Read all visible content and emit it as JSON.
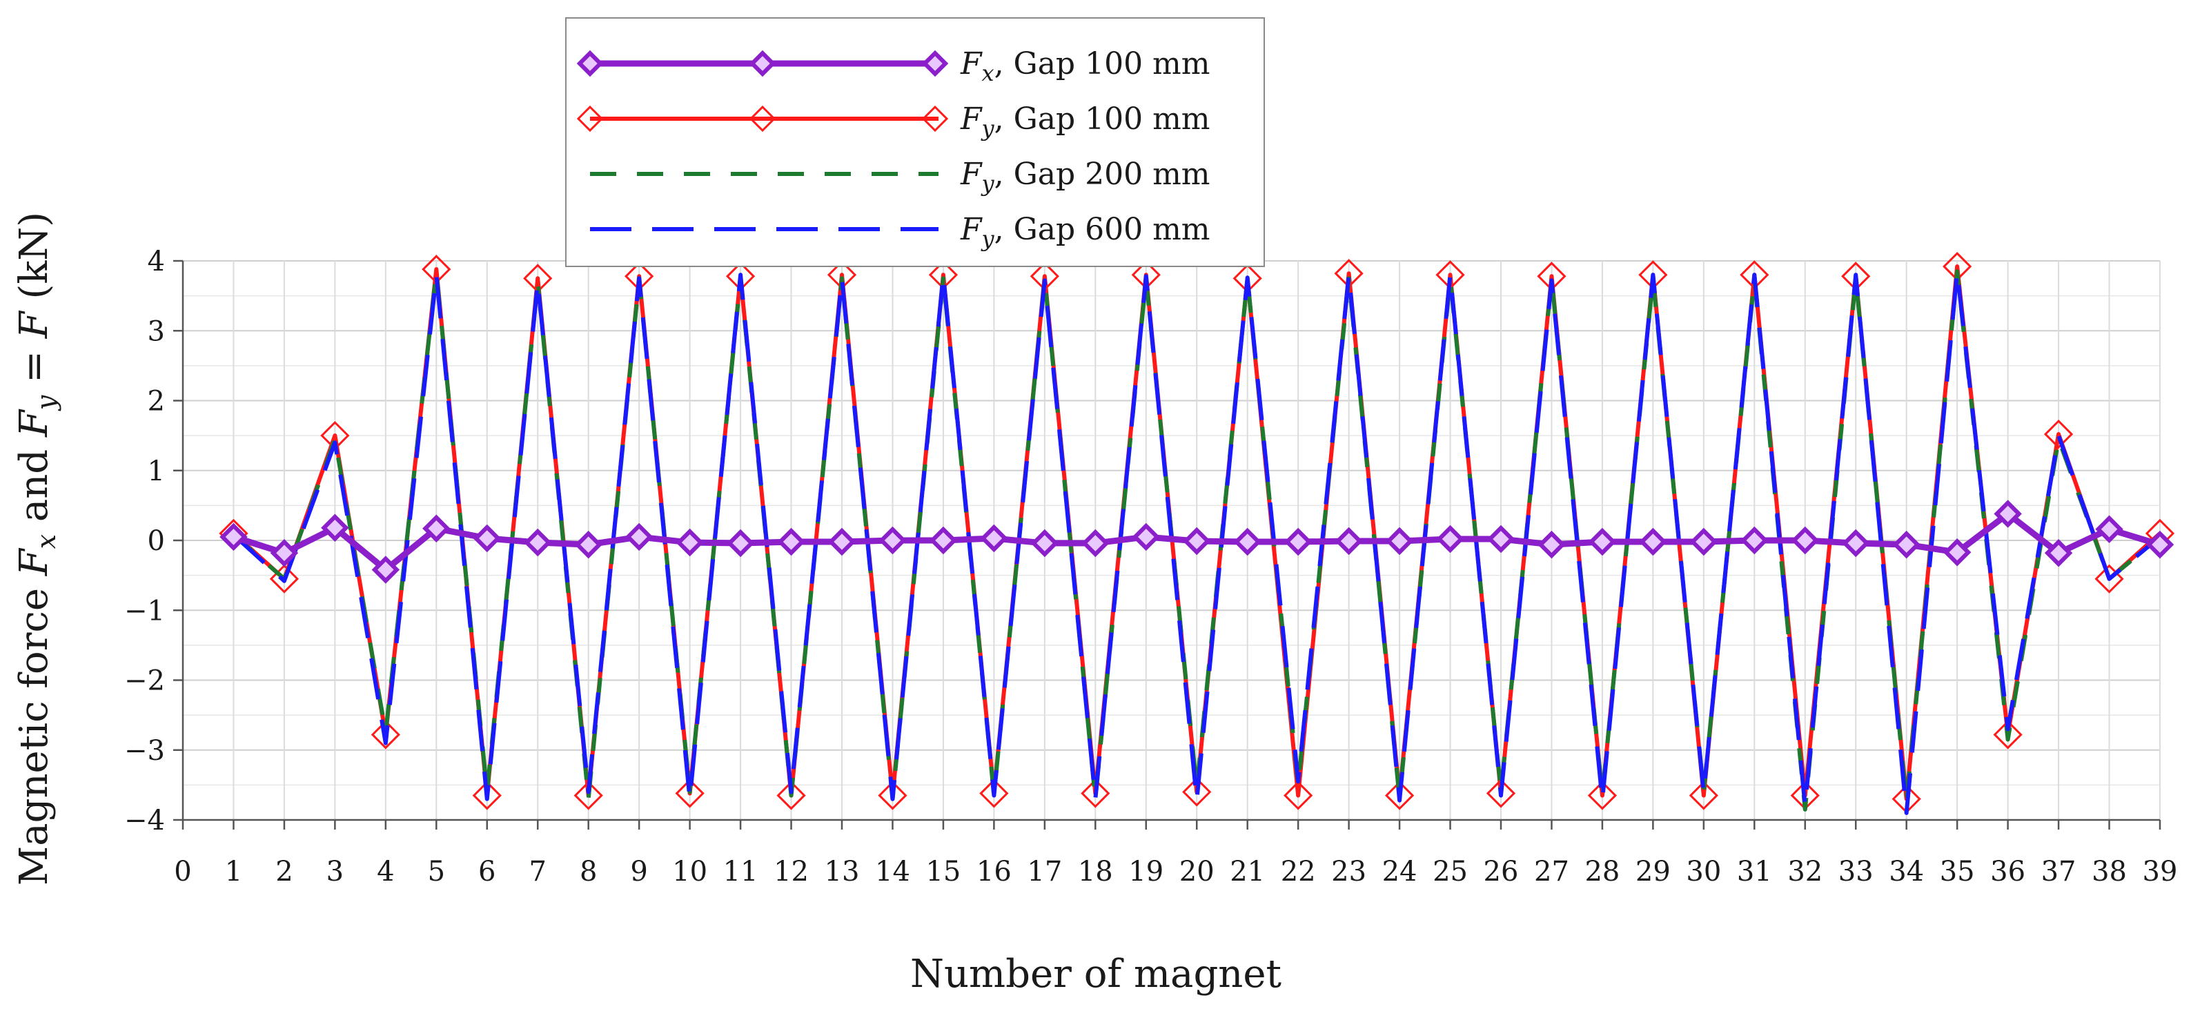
{
  "chart_data": {
    "type": "line",
    "title": "",
    "xlabel": "Number of magnet",
    "ylabel": {
      "prefix": "Magnetic force ",
      "var1": "F",
      "sub1": "x",
      "mid": " and ",
      "var2": "F",
      "sub2": "y",
      "eq": " = ",
      "var3": "F",
      "suffix": "  (kN)"
    },
    "xlim": [
      0,
      39
    ],
    "ylim": [
      -4,
      4
    ],
    "x_ticks": [
      0,
      1,
      2,
      3,
      4,
      5,
      6,
      7,
      8,
      9,
      10,
      11,
      12,
      13,
      14,
      15,
      16,
      17,
      18,
      19,
      20,
      21,
      22,
      23,
      24,
      25,
      26,
      27,
      28,
      29,
      30,
      31,
      32,
      33,
      34,
      35,
      36,
      37,
      38,
      39
    ],
    "y_ticks": [
      -4,
      -3,
      -2,
      -1,
      0,
      1,
      2,
      3,
      4
    ],
    "y_tick_labels": [
      "−4",
      "−3",
      "−2",
      "−1",
      "0",
      "1",
      "2",
      "3",
      "4"
    ],
    "grid": true,
    "legend_position": "top-center",
    "x": [
      1,
      2,
      3,
      4,
      5,
      6,
      7,
      8,
      9,
      10,
      11,
      12,
      13,
      14,
      15,
      16,
      17,
      18,
      19,
      20,
      21,
      22,
      23,
      24,
      25,
      26,
      27,
      28,
      29,
      30,
      31,
      32,
      33,
      34,
      35,
      36,
      37,
      38,
      39
    ],
    "series": [
      {
        "name": "Fx, Gap 100 mm",
        "legend_var": "F",
        "legend_sub": "x",
        "legend_rest": ", Gap 100 mm",
        "color": "#8b1fc9",
        "style": "solid-thick",
        "marker": "diamond-filled",
        "values": [
          0.05,
          -0.18,
          0.18,
          -0.42,
          0.17,
          0.03,
          -0.03,
          -0.06,
          0.05,
          -0.03,
          -0.04,
          -0.02,
          -0.02,
          0.0,
          0.0,
          0.03,
          -0.04,
          -0.04,
          0.05,
          -0.01,
          -0.02,
          -0.02,
          -0.01,
          -0.01,
          0.02,
          0.02,
          -0.06,
          -0.02,
          -0.02,
          -0.02,
          0.0,
          0.0,
          -0.04,
          -0.06,
          -0.17,
          0.38,
          -0.18,
          0.16,
          -0.06
        ]
      },
      {
        "name": "Fy, Gap 100 mm",
        "legend_var": "F",
        "legend_sub": "y",
        "legend_rest": ", Gap 100 mm",
        "color": "#ff1a1a",
        "style": "solid",
        "marker": "diamond-open",
        "values": [
          0.1,
          -0.55,
          1.5,
          -2.78,
          3.88,
          -3.65,
          3.75,
          -3.65,
          3.78,
          -3.62,
          3.78,
          -3.65,
          3.8,
          -3.65,
          3.8,
          -3.62,
          3.78,
          -3.62,
          3.8,
          -3.6,
          3.75,
          -3.65,
          3.82,
          -3.65,
          3.8,
          -3.62,
          3.78,
          -3.65,
          3.8,
          -3.65,
          3.8,
          -3.65,
          3.78,
          -3.7,
          3.92,
          -2.78,
          1.52,
          -0.55,
          0.1
        ]
      },
      {
        "name": "Fy, Gap 200 mm",
        "legend_var": "F",
        "legend_sub": "y",
        "legend_rest": ", Gap 200 mm",
        "color": "#1e7a2e",
        "style": "dashed",
        "marker": "none",
        "values": [
          0.08,
          -0.55,
          1.45,
          -2.75,
          3.85,
          -3.6,
          3.7,
          -3.7,
          3.75,
          -3.6,
          3.75,
          -3.65,
          3.75,
          -3.7,
          3.75,
          -3.65,
          3.75,
          -3.7,
          3.75,
          -3.55,
          3.75,
          -3.5,
          3.75,
          -3.7,
          3.75,
          -3.6,
          3.75,
          -3.65,
          3.75,
          -3.6,
          3.75,
          -3.85,
          3.75,
          -3.75,
          3.85,
          -2.85,
          1.45,
          -0.55,
          0.05
        ]
      },
      {
        "name": "Fy, Gap 600 mm",
        "legend_var": "F",
        "legend_sub": "y",
        "legend_rest": ", Gap 600 mm",
        "color": "#1a1aff",
        "style": "long-dash",
        "marker": "none",
        "values": [
          0.08,
          -0.58,
          1.4,
          -2.9,
          3.8,
          -3.7,
          3.7,
          -3.6,
          3.75,
          -3.7,
          3.8,
          -3.6,
          3.75,
          -3.7,
          3.8,
          -3.65,
          3.72,
          -3.7,
          3.78,
          -3.72,
          3.76,
          -3.45,
          3.8,
          -3.72,
          3.8,
          -3.65,
          3.72,
          -3.72,
          3.8,
          -3.62,
          3.8,
          -3.8,
          3.8,
          -3.9,
          3.85,
          -2.7,
          1.5,
          -0.55,
          0.05
        ]
      }
    ]
  }
}
